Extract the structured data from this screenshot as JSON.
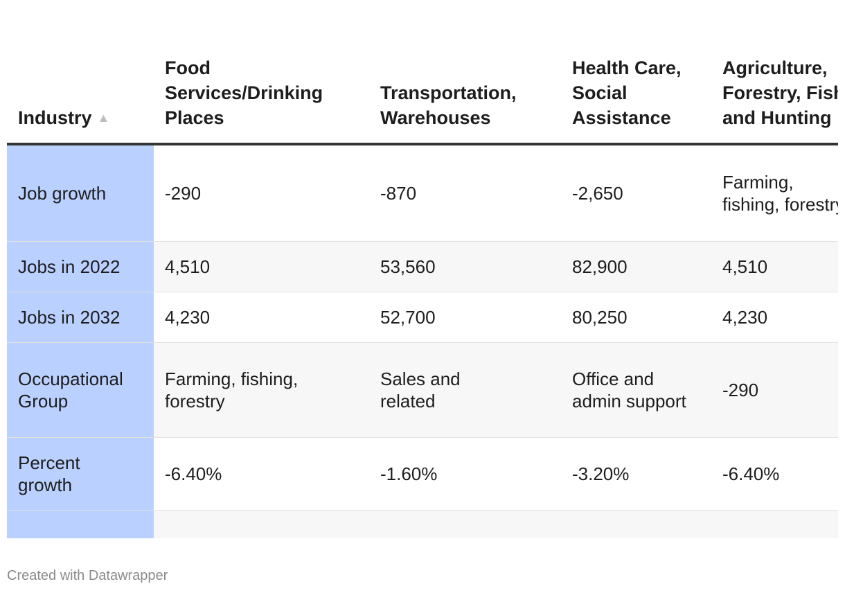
{
  "table": {
    "header_label": "Industry",
    "sort_arrow": "▲",
    "columns": [
      "Food Services/Drinking Places",
      "Transportation, Warehouses",
      "Health Care, Social Assistance",
      "Agriculture, Forestry, Fishing and Hunting"
    ],
    "rows": [
      {
        "label": "Job growth",
        "cells": [
          "-290",
          "-870",
          "-2,650",
          "Farming, fishing, forestry"
        ]
      },
      {
        "label": "Jobs in 2022",
        "cells": [
          "4,510",
          "53,560",
          "82,900",
          "4,510"
        ]
      },
      {
        "label": "Jobs in 2032",
        "cells": [
          "4,230",
          "52,700",
          "80,250",
          "4,230"
        ]
      },
      {
        "label": "Occupational Group",
        "cells": [
          "Farming, fishing, forestry",
          "Sales and related",
          "Office and admin support",
          "-290"
        ]
      },
      {
        "label": "Percent growth",
        "cells": [
          "-6.40%",
          "-1.60%",
          "-3.20%",
          "-6.40%"
        ]
      }
    ]
  },
  "footer": {
    "credit": "Created with Datawrapper"
  }
}
